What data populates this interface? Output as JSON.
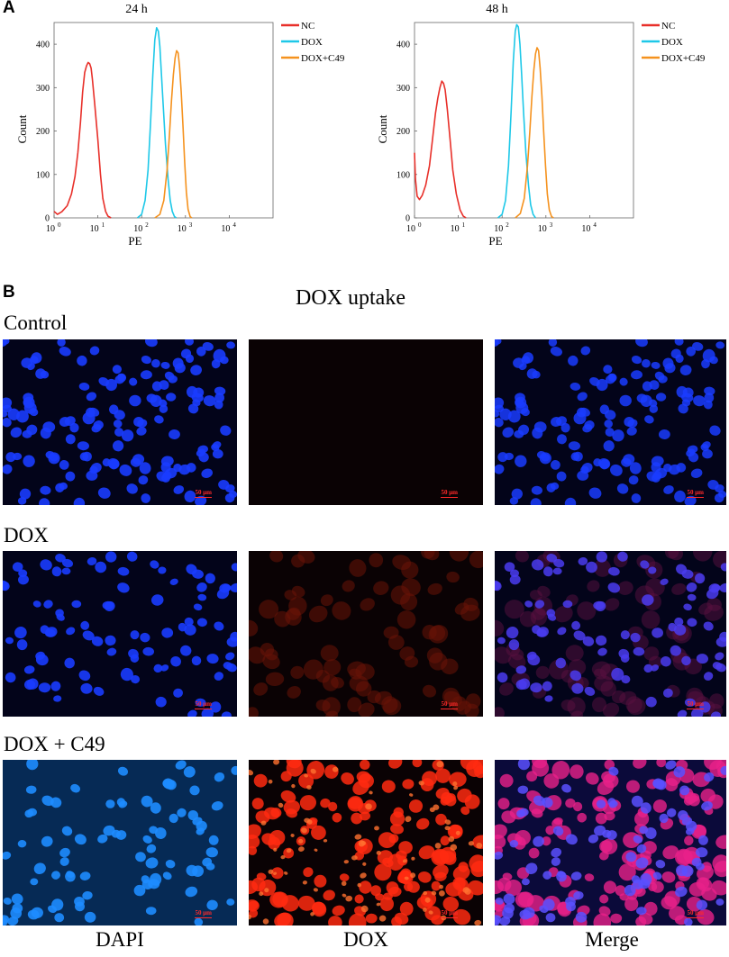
{
  "panels": {
    "a_letter": "A",
    "b_letter": "B"
  },
  "chart_data": [
    {
      "type": "line",
      "title": "24 h",
      "xlabel": "PE",
      "ylabel": "Count",
      "xscale": "log",
      "xlim": [
        1,
        100000
      ],
      "ylim": [
        0,
        450
      ],
      "x_ticks": [
        "10",
        "10",
        "10",
        "10",
        "10"
      ],
      "x_tick_exponents": [
        "0",
        "1",
        "2",
        "3",
        "4"
      ],
      "y_ticks": [
        "0",
        "100",
        "200",
        "300",
        "400"
      ],
      "legend": "top-right",
      "grid": false,
      "series": [
        {
          "name": "NC",
          "color": "#e8302a",
          "points": [
            [
              1,
              15
            ],
            [
              1.2,
              8
            ],
            [
              1.5,
              14
            ],
            [
              2,
              28
            ],
            [
              2.5,
              55
            ],
            [
              3,
              95
            ],
            [
              3.5,
              150
            ],
            [
              4,
              220
            ],
            [
              4.5,
              290
            ],
            [
              5,
              335
            ],
            [
              5.5,
              350
            ],
            [
              6,
              358
            ],
            [
              6.5,
              355
            ],
            [
              7,
              345
            ],
            [
              7.5,
              320
            ],
            [
              8.5,
              260
            ],
            [
              10,
              180
            ],
            [
              11.5,
              100
            ],
            [
              13,
              45
            ],
            [
              15,
              15
            ],
            [
              17,
              4
            ],
            [
              20,
              0
            ]
          ]
        },
        {
          "name": "DOX",
          "color": "#1ec8e8",
          "points": [
            [
              80,
              0
            ],
            [
              100,
              8
            ],
            [
              120,
              40
            ],
            [
              140,
              110
            ],
            [
              160,
              220
            ],
            [
              180,
              330
            ],
            [
              200,
              410
            ],
            [
              220,
              438
            ],
            [
              240,
              430
            ],
            [
              260,
              395
            ],
            [
              280,
              340
            ],
            [
              310,
              260
            ],
            [
              350,
              170
            ],
            [
              400,
              90
            ],
            [
              450,
              40
            ],
            [
              500,
              15
            ],
            [
              560,
              3
            ],
            [
              620,
              0
            ]
          ]
        },
        {
          "name": "DOX+C49",
          "color": "#f5921e",
          "points": [
            [
              200,
              0
            ],
            [
              260,
              8
            ],
            [
              320,
              40
            ],
            [
              380,
              110
            ],
            [
              430,
              190
            ],
            [
              480,
              270
            ],
            [
              530,
              330
            ],
            [
              580,
              368
            ],
            [
              630,
              385
            ],
            [
              680,
              380
            ],
            [
              730,
              350
            ],
            [
              800,
              290
            ],
            [
              880,
              210
            ],
            [
              960,
              130
            ],
            [
              1050,
              60
            ],
            [
              1150,
              20
            ],
            [
              1280,
              3
            ],
            [
              1400,
              0
            ]
          ]
        }
      ]
    },
    {
      "type": "line",
      "title": "48 h",
      "xlabel": "PE",
      "ylabel": "Count",
      "xscale": "log",
      "xlim": [
        1,
        100000
      ],
      "ylim": [
        0,
        450
      ],
      "x_ticks": [
        "10",
        "10",
        "10",
        "10",
        "10"
      ],
      "x_tick_exponents": [
        "0",
        "1",
        "2",
        "3",
        "4"
      ],
      "y_ticks": [
        "0",
        "100",
        "200",
        "300",
        "400"
      ],
      "legend": "top-right",
      "grid": false,
      "series": [
        {
          "name": "NC",
          "color": "#e8302a",
          "points": [
            [
              1,
              150
            ],
            [
              1.05,
              90
            ],
            [
              1.15,
              50
            ],
            [
              1.3,
              42
            ],
            [
              1.5,
              52
            ],
            [
              1.8,
              75
            ],
            [
              2.2,
              120
            ],
            [
              2.6,
              185
            ],
            [
              3,
              240
            ],
            [
              3.4,
              275
            ],
            [
              3.8,
              300
            ],
            [
              4.2,
              315
            ],
            [
              4.6,
              310
            ],
            [
              5,
              295
            ],
            [
              5.6,
              250
            ],
            [
              6.5,
              180
            ],
            [
              7.5,
              110
            ],
            [
              9,
              55
            ],
            [
              11,
              18
            ],
            [
              13,
              4
            ],
            [
              15,
              0
            ]
          ]
        },
        {
          "name": "DOX",
          "color": "#1ec8e8",
          "points": [
            [
              80,
              0
            ],
            [
              100,
              8
            ],
            [
              120,
              40
            ],
            [
              140,
              120
            ],
            [
              160,
              240
            ],
            [
              180,
              360
            ],
            [
              200,
              430
            ],
            [
              215,
              445
            ],
            [
              235,
              440
            ],
            [
              255,
              400
            ],
            [
              280,
              330
            ],
            [
              310,
              240
            ],
            [
              350,
              150
            ],
            [
              400,
              75
            ],
            [
              450,
              30
            ],
            [
              510,
              8
            ],
            [
              580,
              0
            ]
          ]
        },
        {
          "name": "DOX+C49",
          "color": "#f5921e",
          "points": [
            [
              200,
              0
            ],
            [
              260,
              10
            ],
            [
              320,
              45
            ],
            [
              380,
              120
            ],
            [
              430,
              200
            ],
            [
              480,
              280
            ],
            [
              530,
              340
            ],
            [
              580,
              378
            ],
            [
              630,
              392
            ],
            [
              680,
              385
            ],
            [
              740,
              345
            ],
            [
              810,
              280
            ],
            [
              890,
              200
            ],
            [
              980,
              120
            ],
            [
              1080,
              55
            ],
            [
              1200,
              18
            ],
            [
              1350,
              3
            ],
            [
              1500,
              0
            ]
          ]
        }
      ]
    }
  ],
  "microscopy": {
    "title": "DOX uptake",
    "rows": [
      "Control",
      "DOX",
      "DOX + C49"
    ],
    "columns": [
      "DAPI",
      "DOX",
      "Merge"
    ],
    "scale_bar": "50 μm",
    "channel_colors": {
      "dapi": "#1a3cff",
      "dox": "#ff2a10",
      "merge": "#c030e0",
      "background": "#03041a"
    }
  }
}
